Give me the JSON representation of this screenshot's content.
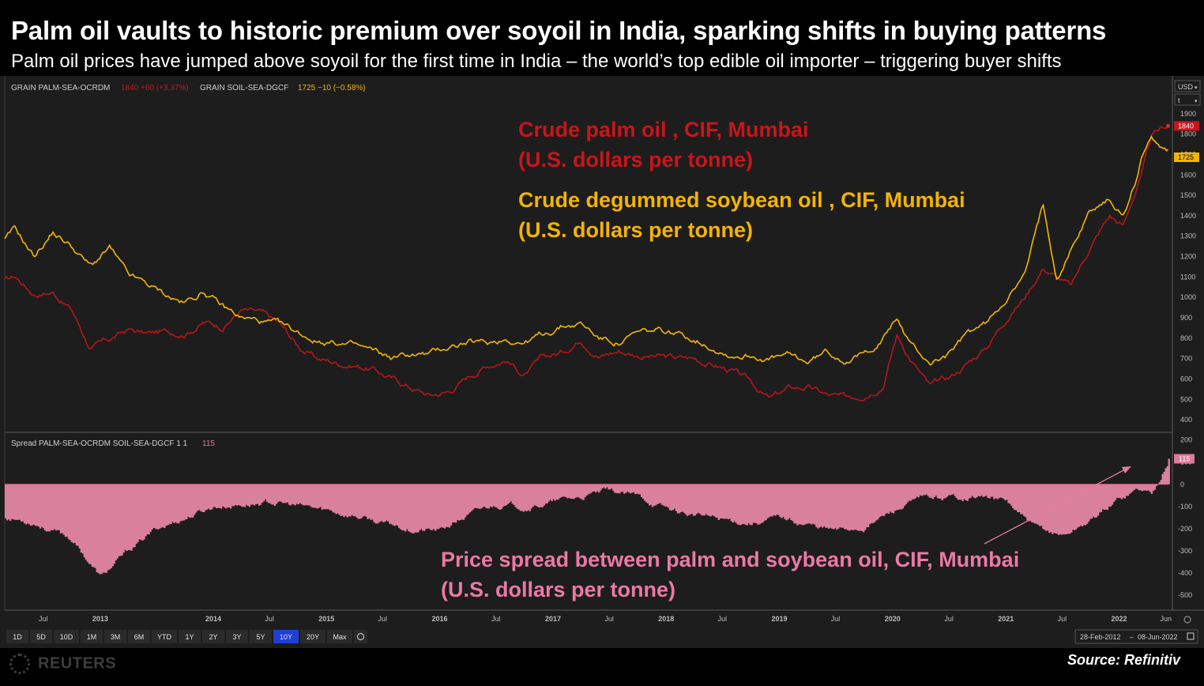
{
  "header": {
    "title": "Palm oil vaults to historic premium over soyoil in India, sparking shifts in buying patterns",
    "subtitle": "Palm oil prices have jumped above soyoil for the first time in India – the world’s top edible oil importer – triggering buyer shifts"
  },
  "legend_top": {
    "palm_ric": "GRAIN PALM-SEA-OCRDM",
    "palm_quote": "1840 +60 (+3.37%)",
    "soy_ric": "GRAIN SOIL-SEA-DGCF",
    "soy_quote": "1725 −10 (−0.58%)"
  },
  "legend_bottom": {
    "spread_label": "Spread PALM-SEA-OCRDM SOIL-SEA-DGCF 1 1",
    "spread_value": "115"
  },
  "annotations": {
    "palm_line1": "Crude palm oil , CIF, Mumbai",
    "palm_line2": "(U.S. dollars per tonne)",
    "soy_line1": "Crude degummed soybean oil , CIF, Mumbai",
    "soy_line2": "(U.S. dollars per tonne)",
    "spread_line1": "Price spread between palm and soybean oil, CIF, Mumbai",
    "spread_line2": "(U.S. dollars per tonne)"
  },
  "axis_controls": {
    "currency": "USD",
    "unit": "t"
  },
  "price_badges": {
    "palm": "1840",
    "soy": "1725",
    "spread": "115"
  },
  "periods": [
    "1D",
    "5D",
    "10D",
    "1M",
    "3M",
    "6M",
    "YTD",
    "1Y",
    "2Y",
    "3Y",
    "5Y",
    "10Y",
    "20Y",
    "Max"
  ],
  "active_period": "10Y",
  "date_range": {
    "start": "28-Feb-2012",
    "end": "08-Jun-2022"
  },
  "footer": {
    "brand": "REUTERS",
    "source": "Source: Refinitiv"
  },
  "colors": {
    "palm": "#b5161b",
    "soy": "#f2b600",
    "spread": "#e0789a",
    "palm_text": "#c8151b",
    "soy_text": "#f4b400",
    "spread_text": "#ea79a4",
    "background": "#1d1d1d"
  },
  "chart_data": [
    {
      "type": "line",
      "title": "",
      "y_ticks": [
        400,
        500,
        600,
        700,
        800,
        900,
        1000,
        1100,
        1200,
        1300,
        1400,
        1500,
        1600,
        1700,
        1800,
        1900
      ],
      "ylim": [
        350,
        2000
      ],
      "x_tick_labels": [
        "Jul",
        "2013",
        "2014",
        "Jul",
        "2015",
        "Jul",
        "2016",
        "Jul",
        "2017",
        "Jul",
        "2018",
        "Jul",
        "2019",
        "Jul",
        "2020",
        "Jul",
        "2021",
        "Jul",
        "2022",
        "Jun"
      ],
      "x_tick_dates": [
        "2012-07-01",
        "2013-01-01",
        "2014-01-01",
        "2014-07-01",
        "2015-01-01",
        "2015-07-01",
        "2016-01-01",
        "2016-07-01",
        "2017-01-01",
        "2017-07-01",
        "2018-01-01",
        "2018-07-01",
        "2019-01-01",
        "2019-07-01",
        "2020-01-01",
        "2020-07-01",
        "2021-01-01",
        "2021-07-01",
        "2022-01-01",
        "2022-06-01"
      ],
      "series": [
        {
          "name": "Crude palm oil , CIF, Mumbai",
          "x": [
            "2012-02-28",
            "2012-04-01",
            "2012-06-01",
            "2012-08-01",
            "2012-10-01",
            "2012-12-01",
            "2013-02-01",
            "2013-04-01",
            "2013-06-01",
            "2013-08-01",
            "2013-10-01",
            "2013-12-01",
            "2014-02-01",
            "2014-04-01",
            "2014-06-01",
            "2014-08-01",
            "2014-10-01",
            "2014-12-01",
            "2015-02-01",
            "2015-04-01",
            "2015-06-01",
            "2015-08-01",
            "2015-10-01",
            "2015-12-01",
            "2016-02-01",
            "2016-04-01",
            "2016-06-01",
            "2016-08-01",
            "2016-10-01",
            "2016-12-01",
            "2017-02-01",
            "2017-04-01",
            "2017-06-01",
            "2017-08-01",
            "2017-10-01",
            "2017-12-01",
            "2018-02-01",
            "2018-04-01",
            "2018-06-01",
            "2018-08-01",
            "2018-10-01",
            "2018-12-01",
            "2019-02-01",
            "2019-04-01",
            "2019-06-01",
            "2019-08-01",
            "2019-10-01",
            "2019-12-01",
            "2020-01-15",
            "2020-03-01",
            "2020-05-01",
            "2020-07-01",
            "2020-09-01",
            "2020-11-01",
            "2021-01-01",
            "2021-03-01",
            "2021-05-01",
            "2021-06-15",
            "2021-08-01",
            "2021-10-01",
            "2021-12-01",
            "2022-01-15",
            "2022-03-01",
            "2022-03-15",
            "2022-04-15",
            "2022-06-08"
          ],
          "y": [
            1080,
            1100,
            1020,
            1030,
            940,
            750,
            790,
            840,
            820,
            830,
            830,
            880,
            860,
            940,
            920,
            870,
            760,
            700,
            680,
            670,
            650,
            600,
            560,
            520,
            540,
            610,
            670,
            700,
            620,
            700,
            730,
            800,
            720,
            740,
            720,
            710,
            700,
            700,
            670,
            640,
            580,
            500,
            550,
            560,
            520,
            500,
            530,
            580,
            820,
            700,
            560,
            600,
            680,
            760,
            900,
            1000,
            1150,
            1100,
            1050,
            1250,
            1400,
            1350,
            1550,
            1600,
            1780,
            1840
          ]
        },
        {
          "name": "Crude degummed soybean oil , CIF, Mumbai",
          "x": [
            "2012-02-28",
            "2012-04-01",
            "2012-06-01",
            "2012-08-01",
            "2012-10-01",
            "2012-12-01",
            "2013-02-01",
            "2013-04-01",
            "2013-06-01",
            "2013-08-01",
            "2013-10-01",
            "2013-12-01",
            "2014-02-01",
            "2014-04-01",
            "2014-06-01",
            "2014-08-01",
            "2014-10-01",
            "2014-12-01",
            "2015-02-01",
            "2015-04-01",
            "2015-06-01",
            "2015-08-01",
            "2015-10-01",
            "2015-12-01",
            "2016-02-01",
            "2016-04-01",
            "2016-06-01",
            "2016-08-01",
            "2016-10-01",
            "2016-12-01",
            "2017-02-01",
            "2017-04-01",
            "2017-06-01",
            "2017-08-01",
            "2017-10-01",
            "2017-12-01",
            "2018-02-01",
            "2018-04-01",
            "2018-06-01",
            "2018-08-01",
            "2018-10-01",
            "2018-12-01",
            "2019-02-01",
            "2019-04-01",
            "2019-06-01",
            "2019-08-01",
            "2019-10-01",
            "2019-12-01",
            "2020-01-15",
            "2020-03-01",
            "2020-05-01",
            "2020-07-01",
            "2020-09-01",
            "2020-11-01",
            "2021-01-01",
            "2021-03-01",
            "2021-05-01",
            "2021-06-15",
            "2021-08-01",
            "2021-10-01",
            "2021-12-01",
            "2022-01-15",
            "2022-03-01",
            "2022-03-15",
            "2022-04-15",
            "2022-06-08"
          ],
          "y": [
            1280,
            1330,
            1200,
            1320,
            1250,
            1150,
            1240,
            1100,
            1060,
            1010,
            970,
            1030,
            950,
            900,
            880,
            860,
            820,
            790,
            780,
            760,
            730,
            700,
            720,
            720,
            760,
            780,
            770,
            800,
            780,
            820,
            860,
            870,
            800,
            780,
            820,
            830,
            820,
            800,
            760,
            720,
            720,
            700,
            710,
            680,
            730,
            700,
            720,
            800,
            900,
            760,
            680,
            720,
            820,
            870,
            1000,
            1100,
            1450,
            1100,
            1250,
            1430,
            1480,
            1400,
            1600,
            1700,
            1780,
            1725
          ]
        }
      ]
    },
    {
      "type": "bar",
      "title": "",
      "series_name": "Price spread between palm and soybean oil, CIF, Mumbai",
      "y_ticks": [
        200,
        100,
        0,
        -100,
        -200,
        -300,
        -400,
        -500
      ],
      "ylim": [
        -560,
        220
      ],
      "x": [
        "2012-02-28",
        "2012-06-01",
        "2012-10-01",
        "2013-01-01",
        "2013-04-01",
        "2013-07-01",
        "2013-10-01",
        "2014-01-01",
        "2014-04-01",
        "2014-07-01",
        "2014-10-01",
        "2015-01-01",
        "2015-04-01",
        "2015-07-01",
        "2015-10-01",
        "2016-01-01",
        "2016-04-01",
        "2016-07-01",
        "2016-10-01",
        "2017-01-01",
        "2017-04-01",
        "2017-07-01",
        "2017-10-01",
        "2018-01-01",
        "2018-04-01",
        "2018-07-01",
        "2018-10-01",
        "2019-01-01",
        "2019-04-01",
        "2019-07-01",
        "2019-10-01",
        "2020-01-01",
        "2020-04-01",
        "2020-07-01",
        "2020-10-01",
        "2021-01-01",
        "2021-04-01",
        "2021-07-01",
        "2021-10-01",
        "2022-01-01",
        "2022-03-01",
        "2022-04-15",
        "2022-06-08"
      ],
      "values": [
        -150,
        -170,
        -250,
        -420,
        -300,
        -200,
        -150,
        -100,
        -90,
        -80,
        -100,
        -120,
        -140,
        -180,
        -200,
        -210,
        -140,
        -90,
        -100,
        -80,
        -60,
        -30,
        -60,
        -110,
        -140,
        -160,
        -170,
        -150,
        -180,
        -210,
        -190,
        -120,
        -70,
        -60,
        -50,
        -80,
        -200,
        -230,
        -160,
        -60,
        -20,
        -40,
        115
      ]
    }
  ]
}
